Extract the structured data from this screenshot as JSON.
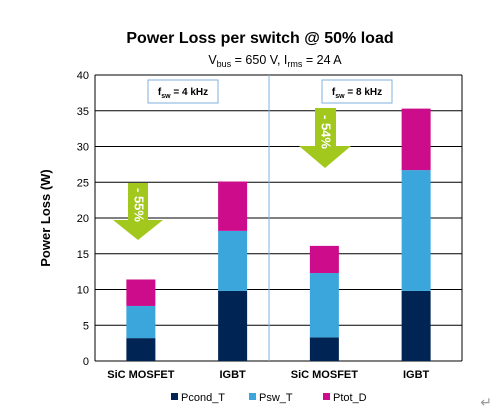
{
  "chart_data": {
    "type": "bar",
    "stacked": true,
    "title": "Power Loss per switch @ 50% load",
    "subtitle": {
      "bus_label": "V",
      "bus_sub": "bus",
      "bus_value": " = 650 V, I",
      "rms_sub": "rms",
      "rms_value": " = 24 A"
    },
    "ylabel": "Power  Loss (W)",
    "ylim": [
      0,
      40
    ],
    "yticks": [
      0,
      5,
      10,
      15,
      20,
      25,
      30,
      35,
      40
    ],
    "grid": true,
    "categories": [
      "SiC MOSFET",
      "IGBT",
      "SiC MOSFET",
      "IGBT"
    ],
    "series": [
      {
        "name": "Pcond_T",
        "color": "#002555",
        "values": [
          3.2,
          9.8,
          3.3,
          9.8
        ]
      },
      {
        "name": "Psw_T",
        "color": "#3aa6dc",
        "values": [
          4.5,
          8.4,
          9.0,
          16.9
        ]
      },
      {
        "name": "Ptot_D",
        "color": "#cc0c8a",
        "values": [
          3.7,
          6.9,
          3.8,
          8.6
        ]
      }
    ],
    "legend_position": "bottom",
    "groups": [
      {
        "label_main": "f",
        "label_sub": "sw",
        "label_rest": " = 4 kHz"
      },
      {
        "label_main": "f",
        "label_sub": "sw",
        "label_rest": " = 8 kHz"
      }
    ],
    "annotations": [
      {
        "text": "- 55%",
        "color": "#a2c81e"
      },
      {
        "text": "- 54%",
        "color": "#a2c81e"
      }
    ]
  },
  "return_symbol": "↵"
}
